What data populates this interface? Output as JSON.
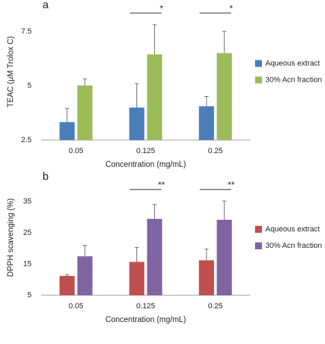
{
  "chart_data": [
    {
      "type": "bar",
      "panel_label": "a",
      "xlabel": "Concentration (mg/mL)",
      "ylabel": "TEAC (μM Trolox C)",
      "categories": [
        "0.05",
        "0.125",
        "0.25"
      ],
      "series": [
        {
          "name": "Aqueous extract",
          "color": "#4a7ebb",
          "values": [
            3.33,
            4.0,
            4.06
          ],
          "errors": [
            0.63,
            1.1,
            0.45
          ]
        },
        {
          "name": "30% Acn fraction",
          "color": "#9bbb59",
          "values": [
            5.02,
            6.45,
            6.51
          ],
          "errors": [
            0.3,
            1.37,
            1.0
          ]
        }
      ],
      "significance": [
        null,
        "*",
        "*"
      ],
      "ylim": [
        2.5,
        8.8
      ],
      "yticks": [
        2.5,
        5,
        7.5
      ],
      "legend": "right"
    },
    {
      "type": "bar",
      "panel_label": "b",
      "xlabel": "Concentration (mg/mL)",
      "ylabel": "DPPH scavenging (%)",
      "categories": [
        "0.05",
        "0.125",
        "0.25"
      ],
      "series": [
        {
          "name": "Aqueous extract",
          "color": "#c0504d",
          "values": [
            11.2,
            15.7,
            16.2
          ],
          "errors": [
            0.4,
            4.6,
            3.6
          ]
        },
        {
          "name": "30% Acn fraction",
          "color": "#8064a2",
          "values": [
            17.5,
            29.5,
            29.2
          ],
          "errors": [
            3.5,
            4.6,
            6.0
          ]
        }
      ],
      "significance": [
        null,
        "**",
        "**"
      ],
      "ylim": [
        5,
        42
      ],
      "yticks": [
        5,
        15,
        25,
        35
      ],
      "legend": "right"
    }
  ]
}
